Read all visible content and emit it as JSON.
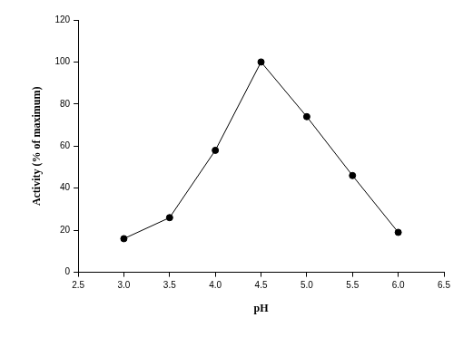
{
  "chart_data": {
    "type": "line",
    "x_label": "pH",
    "y_label": "Activity (% of maximum)",
    "x": [
      3.0,
      3.5,
      4.0,
      4.5,
      5.0,
      5.5,
      6.0
    ],
    "values": [
      16,
      26,
      58,
      100,
      74,
      46,
      19
    ],
    "color": "#000000",
    "marker": "circle",
    "line_style": "solid",
    "xlim": [
      2.5,
      6.5
    ],
    "xticks": [
      2.5,
      {
        "value": 3,
        "label": "3.0"
      },
      3.5,
      {
        "value": 4,
        "label": "4.0"
      },
      4.5,
      {
        "value": 5,
        "label": "5.0"
      },
      5.5,
      {
        "value": 6,
        "label": "6.0"
      },
      6.5
    ],
    "ylim": [
      0,
      120
    ],
    "yticks": [
      0,
      20,
      40,
      60,
      80,
      100,
      120
    ],
    "grid": false
  }
}
